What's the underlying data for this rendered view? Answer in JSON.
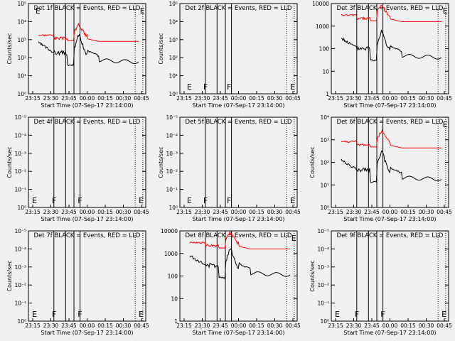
{
  "chart_data": [
    {
      "title": "Det 1f BLACK = Events, RED = LLD",
      "ylabel": "Counts/sec",
      "xlabel": "Start Time (07-Sep-17 23:14:00)",
      "y_ticks": [
        "10⁰",
        "10¹",
        "10²",
        "10³",
        "10⁴",
        "10⁵"
      ],
      "has_data": true,
      "red_level": 0.58,
      "black_level": 0.37,
      "markers": [
        {
          "text": "E",
          "pos": "top",
          "frac": 0.06
        },
        {
          "text": "E",
          "pos": "top",
          "frac": 0.95
        }
      ]
    },
    {
      "title": "Det 2f BLACK = Events, RED = LLD",
      "ylabel": "Counts/sec",
      "xlabel": "Start Time (07-Sep-17 23:14:00)",
      "y_ticks": [
        "10⁰",
        "10¹",
        "10²",
        "10³",
        "10⁴",
        "10⁵"
      ],
      "has_data": false,
      "markers": [
        {
          "text": "E",
          "pos": "bottom",
          "frac": 0.06
        },
        {
          "text": "F",
          "pos": "bottom",
          "frac": 0.2
        },
        {
          "text": "F",
          "pos": "bottom",
          "frac": 0.4
        },
        {
          "text": "E",
          "pos": "bottom",
          "frac": 0.94
        }
      ]
    },
    {
      "title": "Det 3f BLACK = Events, RED = LLD",
      "ylabel": "",
      "xlabel": "Start Time (07-Sep-17 23:14:00)",
      "y_ticks": [
        "1",
        "10",
        "100",
        "1000",
        "10000"
      ],
      "has_data": true,
      "red_level": 0.8,
      "black_level": 0.42,
      "markers": [
        {
          "text": "E",
          "pos": "top",
          "frac": 0.95
        }
      ]
    },
    {
      "title": "Det 4f BLACK = Events, RED = LLD",
      "ylabel": "Counts/sec",
      "xlabel": "Start Time (07-Sep-17 23:14:00)",
      "y_ticks": [
        "10⁰",
        "10⁻¹",
        "10⁻²",
        "10⁻³",
        "10⁻⁴",
        "10⁻⁵"
      ],
      "has_data": false,
      "markers": [
        {
          "text": "E",
          "pos": "bottom",
          "frac": 0.03
        },
        {
          "text": "F",
          "pos": "bottom",
          "frac": 0.2
        },
        {
          "text": "F",
          "pos": "bottom",
          "frac": 0.42
        },
        {
          "text": "E",
          "pos": "bottom",
          "frac": 0.94
        }
      ]
    },
    {
      "title": "Det 5f BLACK = Events, RED = LLD",
      "ylabel": "Counts/sec",
      "xlabel": "Start Time (07-Sep-17 23:14:00)",
      "y_ticks": [
        "10⁰",
        "10⁻¹",
        "10⁻²",
        "10⁻³",
        "10⁻⁴",
        "10⁻⁵"
      ],
      "has_data": false,
      "markers": [
        {
          "text": "E",
          "pos": "bottom",
          "frac": 0.06
        },
        {
          "text": "F",
          "pos": "bottom",
          "frac": 0.2
        },
        {
          "text": "F",
          "pos": "bottom",
          "frac": 0.4
        },
        {
          "text": "E",
          "pos": "bottom",
          "frac": 0.94
        }
      ]
    },
    {
      "title": "Det 6f BLACK = Events, RED = LLD",
      "ylabel": "Counts/sec",
      "xlabel": "Start Time (07-Sep-17 23:14:00)",
      "y_ticks": [
        "10⁰",
        "10¹",
        "10²",
        "10³",
        "10⁴"
      ],
      "has_data": true,
      "red_level": 0.66,
      "black_level": 0.33,
      "markers": [
        {
          "text": "E",
          "pos": "top",
          "frac": 0.95
        }
      ]
    },
    {
      "title": "Det 7f BLACK = Events, RED = LLD",
      "ylabel": "Counts/sec",
      "xlabel": "Start Time (07-Sep-17 23:14:00)",
      "y_ticks": [
        "10⁰",
        "10⁻¹",
        "10⁻²",
        "10⁻³",
        "10⁻⁴",
        "10⁻⁵"
      ],
      "has_data": false,
      "markers": [
        {
          "text": "E",
          "pos": "bottom",
          "frac": 0.03
        },
        {
          "text": "F",
          "pos": "bottom",
          "frac": 0.2
        },
        {
          "text": "F",
          "pos": "bottom",
          "frac": 0.42
        },
        {
          "text": "E",
          "pos": "bottom",
          "frac": 0.94
        }
      ]
    },
    {
      "title": "Det 8f BLACK = Events, RED = LLD",
      "ylabel": "",
      "xlabel": "Start Time (07-Sep-17 23:14:00)",
      "y_ticks": [
        "1",
        "10",
        "100",
        "1000",
        "10000"
      ],
      "has_data": true,
      "red_level": 0.8,
      "black_level": 0.53,
      "markers": [
        {
          "text": "E",
          "pos": "top",
          "frac": 0.95
        }
      ]
    },
    {
      "title": "Det 9f BLACK = Events, RED = LLD",
      "ylabel": "Counts/sec",
      "xlabel": "Start Time (07-Sep-17 23:14:00)",
      "y_ticks": [
        "10⁰",
        "10⁻¹",
        "10⁻²",
        "10⁻³",
        "10⁻⁴",
        "10⁻⁵"
      ],
      "has_data": false,
      "markers": [
        {
          "text": "E",
          "pos": "bottom",
          "frac": 0.03
        },
        {
          "text": "F",
          "pos": "bottom",
          "frac": 0.2
        },
        {
          "text": "F",
          "pos": "bottom",
          "frac": 0.42
        },
        {
          "text": "E",
          "pos": "bottom",
          "frac": 0.94
        }
      ]
    }
  ],
  "x_ticks": [
    "23:15",
    "23:30",
    "23:45",
    "00:00",
    "00:15",
    "00:30",
    "00:45"
  ],
  "colors": {
    "events": "#000000",
    "lld": "#ff0000",
    "background": "#f0f0f0"
  }
}
